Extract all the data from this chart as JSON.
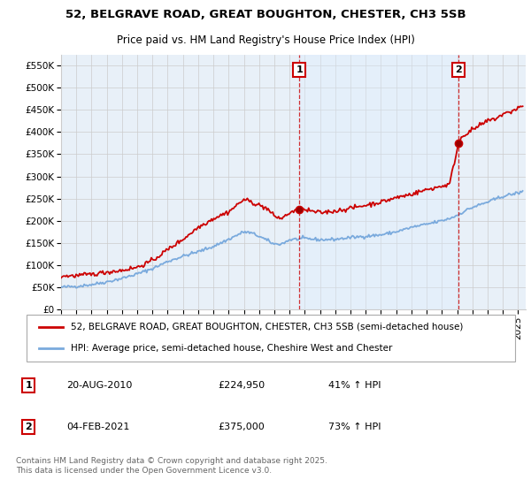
{
  "title": "52, BELGRAVE ROAD, GREAT BOUGHTON, CHESTER, CH3 5SB",
  "subtitle": "Price paid vs. HM Land Registry's House Price Index (HPI)",
  "ylabel_ticks": [
    "£0",
    "£50K",
    "£100K",
    "£150K",
    "£200K",
    "£250K",
    "£300K",
    "£350K",
    "£400K",
    "£450K",
    "£500K",
    "£550K"
  ],
  "ytick_vals": [
    0,
    50000,
    100000,
    150000,
    200000,
    250000,
    300000,
    350000,
    400000,
    450000,
    500000,
    550000
  ],
  "ylim": [
    0,
    575000
  ],
  "xlim_start": 1995.0,
  "xlim_end": 2025.5,
  "xticks": [
    1995,
    1996,
    1997,
    1998,
    1999,
    2000,
    2001,
    2002,
    2003,
    2004,
    2005,
    2006,
    2007,
    2008,
    2009,
    2010,
    2011,
    2012,
    2013,
    2014,
    2015,
    2016,
    2017,
    2018,
    2019,
    2020,
    2021,
    2022,
    2023,
    2024,
    2025
  ],
  "vline1_x": 2010.64,
  "vline2_x": 2021.09,
  "sale1_price": 224950,
  "sale2_price": 375000,
  "sale1_date": "20-AUG-2010",
  "sale2_date": "04-FEB-2021",
  "sale1_hpi": "41% ↑ HPI",
  "sale2_hpi": "73% ↑ HPI",
  "legend_house": "52, BELGRAVE ROAD, GREAT BOUGHTON, CHESTER, CH3 5SB (semi-detached house)",
  "legend_hpi": "HPI: Average price, semi-detached house, Cheshire West and Chester",
  "footer": "Contains HM Land Registry data © Crown copyright and database right 2025.\nThis data is licensed under the Open Government Licence v3.0.",
  "house_color": "#cc0000",
  "hpi_color": "#7aaadd",
  "shade_color": "#ddeeff",
  "background_color": "#e8f0f8",
  "plot_bg_color": "#ffffff",
  "grid_color": "#cccccc",
  "title_fontsize": 9.5,
  "subtitle_fontsize": 8.5,
  "tick_fontsize": 7.5,
  "legend_fontsize": 7.5,
  "annotation_fontsize": 8,
  "footer_fontsize": 6.5,
  "hpi_anchors_x": [
    1995,
    1996,
    1997,
    1998,
    1999,
    2000,
    2001,
    2002,
    2003,
    2004,
    2005,
    2006,
    2007,
    2007.5,
    2008,
    2009,
    2009.5,
    2010,
    2011,
    2012,
    2013,
    2014,
    2015,
    2016,
    2017,
    2018,
    2019,
    2020,
    2020.5,
    2021,
    2021.5,
    2022,
    2023,
    2024,
    2025.3
  ],
  "hpi_anchors_y": [
    50000,
    52000,
    56000,
    62000,
    70000,
    80000,
    92000,
    108000,
    120000,
    130000,
    142000,
    158000,
    175000,
    172000,
    165000,
    147000,
    148000,
    157000,
    160000,
    157000,
    158000,
    162000,
    165000,
    168000,
    175000,
    185000,
    192000,
    200000,
    205000,
    212000,
    222000,
    230000,
    242000,
    255000,
    265000
  ],
  "house_anchors_x": [
    1995,
    1996,
    1997,
    1998,
    1999,
    2000,
    2001,
    2002,
    2003,
    2004,
    2005,
    2006,
    2007,
    2007.5,
    2008,
    2008.5,
    2009,
    2009.5,
    2010.0,
    2010.64,
    2011,
    2012,
    2013,
    2014,
    2015,
    2016,
    2017,
    2018,
    2019,
    2020,
    2020.5,
    2021.09,
    2021.3,
    2022,
    2022.5,
    2023,
    2023.5,
    2024,
    2024.5,
    2025.0,
    2025.3
  ],
  "house_anchors_y": [
    75000,
    76000,
    79000,
    84000,
    88000,
    95000,
    110000,
    135000,
    158000,
    185000,
    205000,
    220000,
    248000,
    242000,
    235000,
    228000,
    210000,
    205000,
    218000,
    224950,
    224000,
    218000,
    222000,
    228000,
    235000,
    242000,
    252000,
    260000,
    270000,
    278000,
    282000,
    375000,
    390000,
    405000,
    415000,
    425000,
    430000,
    440000,
    445000,
    455000,
    458000
  ]
}
